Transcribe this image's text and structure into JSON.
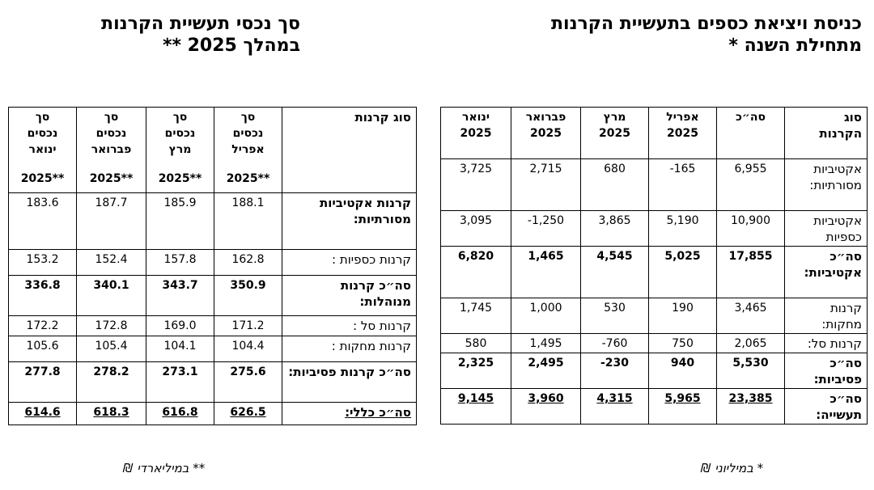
{
  "left_title": [
    "סך נכסי תעשיית הקרנות",
    "במהלך 2025 **"
  ],
  "right_title": [
    "כניסת ויציאת כספים בתעשיית הקרנות",
    "מתחילת השנה *"
  ],
  "left_table": {
    "headers": {
      "type": "סוג קרנות",
      "april": [
        "סך",
        "נכסים",
        "אפריל",
        "2025**"
      ],
      "march": [
        "סך",
        "נכסים",
        "מרץ",
        "2025**"
      ],
      "february": [
        "סך",
        "נכסים",
        "פברואר",
        "2025**"
      ],
      "january": [
        "סך",
        "נכסים",
        "ינואר",
        "2025**"
      ]
    },
    "rows": [
      {
        "label": "קרנות אקטיביות מסורתיות:",
        "values": [
          "188.1",
          "185.9",
          "187.7",
          "183.6"
        ],
        "bold": true
      },
      {
        "label": "קרנות כספיות :",
        "values": [
          "162.8",
          "157.8",
          "152.4",
          "153.2"
        ],
        "bold": false
      },
      {
        "label": "סה״כ קרנות מנוהלות:",
        "values": [
          "350.9",
          "343.7",
          "340.1",
          "336.8"
        ],
        "bold": true
      },
      {
        "label": "קרנות סל :",
        "values": [
          "171.2",
          "169.0",
          "172.8",
          "172.2"
        ],
        "bold": false
      },
      {
        "label": "קרנות מחקות :",
        "values": [
          "104.4",
          "104.1",
          "105.4",
          "105.6"
        ],
        "bold": false
      },
      {
        "label": "סה״כ קרנות פסיביות:",
        "values": [
          "275.6",
          "273.1",
          "278.2",
          "277.8"
        ],
        "bold": true
      },
      {
        "label": "סה״כ כללי:",
        "values": [
          "626.5",
          "616.8",
          "618.3",
          "614.6"
        ],
        "bold": true
      }
    ]
  },
  "right_table": {
    "headers": {
      "type": [
        "סוג",
        "הקרנות"
      ],
      "total": "סה״כ",
      "april": [
        "אפריל",
        "2025"
      ],
      "march": [
        "מרץ",
        "2025"
      ],
      "february": [
        "פברואר",
        "2025"
      ],
      "january": [
        "ינואר",
        "2025"
      ]
    },
    "rows": [
      {
        "label": "אקטיביות מסורתיות:",
        "values": [
          "6,955",
          "-165",
          "680",
          "2,715",
          "3,725"
        ],
        "bold": false
      },
      {
        "label": "אקטיביות כספיות",
        "values": [
          "10,900",
          "5,190",
          "3,865",
          "-1,250",
          "3,095"
        ],
        "bold": false
      },
      {
        "label": "סה״כ אקטיביות:",
        "values": [
          "17,855",
          "5,025",
          "4,545",
          "1,465",
          "6,820"
        ],
        "bold": true
      },
      {
        "label": "קרנות מחקות:",
        "values": [
          "3,465",
          "190",
          "530",
          "1,000",
          "1,745"
        ],
        "bold": false
      },
      {
        "label": "קרנות סל:",
        "values": [
          "2,065",
          "750",
          "-760",
          "1,495",
          "580"
        ],
        "bold": false
      },
      {
        "label": "סה״כ פסיביות:",
        "values": [
          "5,530",
          "940",
          "-230",
          "2,495",
          "2,325"
        ],
        "bold": true
      },
      {
        "label": "סה״כ תעשייה:",
        "values": [
          "23,385",
          "5,965",
          "4,315",
          "3,960",
          "9,145"
        ],
        "bold": true
      }
    ]
  },
  "footnotes": {
    "left": "** במיליארדי ₪",
    "right": "* במיליוני ₪"
  }
}
